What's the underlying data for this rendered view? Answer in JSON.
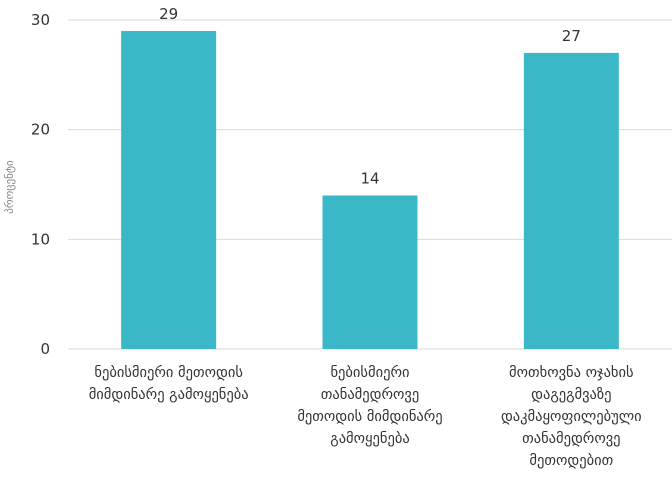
{
  "chart_data": {
    "type": "bar",
    "categories": [
      [
        "ნებისმიერი მეთოდის",
        "მიმდინარე გამოყენება"
      ],
      [
        "ნებისმიერი",
        "თანამედროვე",
        "მეთოდის მიმდინარე",
        "გამოყენება"
      ],
      [
        "მოთხოვნა ოჯახის",
        "დაგეგმვაზე",
        "დაკმაყოფილებული",
        "თანამედროვე",
        "მეთოდებით"
      ]
    ],
    "values": [
      29,
      14,
      27
    ],
    "data_labels": [
      "29",
      "14",
      "27"
    ],
    "ylabel": "პროცენტი",
    "ylim": [
      0,
      30
    ],
    "yticks": [
      0,
      10,
      20,
      30
    ],
    "grid": true,
    "bar_color": "#3ab8c8"
  }
}
